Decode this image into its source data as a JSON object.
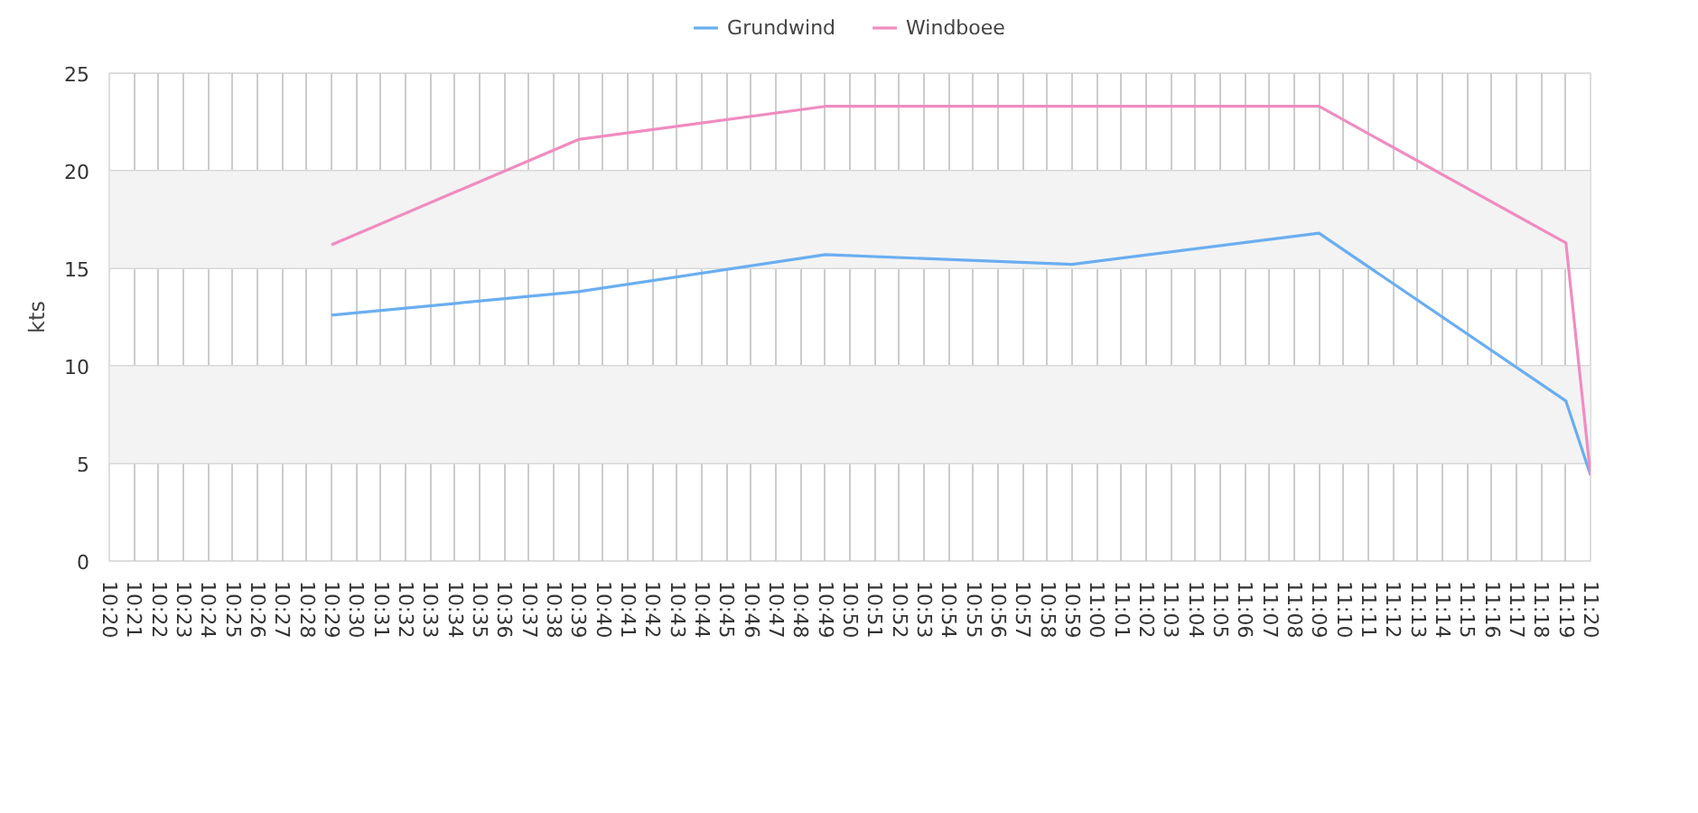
{
  "chart_data": {
    "type": "line",
    "ylabel": "kts",
    "x": [
      10.4833,
      10.65,
      10.8167,
      10.9833,
      11.15,
      11.3167,
      11.3333
    ],
    "series": [
      {
        "name": "Grundwind",
        "color": "#6aaef0",
        "values": [
          12.6,
          13.8,
          15.7,
          15.2,
          16.8,
          8.2,
          4.4
        ]
      },
      {
        "name": "Windboee",
        "color": "#f08cc0",
        "values": [
          16.2,
          21.6,
          23.3,
          23.3,
          23.3,
          16.3,
          4.4
        ]
      }
    ],
    "xlim": [
      10.3333,
      11.3333
    ],
    "ylim": [
      0,
      25
    ],
    "yticks": [
      0,
      5,
      10,
      15,
      20,
      25
    ],
    "xticks": [
      {
        "value": 10.3333,
        "label": "10:20"
      },
      {
        "value": 10.35,
        "label": "10:21"
      },
      {
        "value": 10.3667,
        "label": "10:22"
      },
      {
        "value": 10.3833,
        "label": "10:23"
      },
      {
        "value": 10.4,
        "label": "10:24"
      },
      {
        "value": 10.4167,
        "label": "10:25"
      },
      {
        "value": 10.4333,
        "label": "10:26"
      },
      {
        "value": 10.45,
        "label": "10:27"
      },
      {
        "value": 10.4667,
        "label": "10:28"
      },
      {
        "value": 10.4833,
        "label": "10:29"
      },
      {
        "value": 10.5,
        "label": "10:30"
      },
      {
        "value": 10.5167,
        "label": "10:31"
      },
      {
        "value": 10.5333,
        "label": "10:32"
      },
      {
        "value": 10.55,
        "label": "10:33"
      },
      {
        "value": 10.5667,
        "label": "10:34"
      },
      {
        "value": 10.5833,
        "label": "10:35"
      },
      {
        "value": 10.6,
        "label": "10:36"
      },
      {
        "value": 10.6167,
        "label": "10:37"
      },
      {
        "value": 10.6333,
        "label": "10:38"
      },
      {
        "value": 10.65,
        "label": "10:39"
      },
      {
        "value": 10.6667,
        "label": "10:40"
      },
      {
        "value": 10.6833,
        "label": "10:41"
      },
      {
        "value": 10.7,
        "label": "10:42"
      },
      {
        "value": 10.7167,
        "label": "10:43"
      },
      {
        "value": 10.7333,
        "label": "10:44"
      },
      {
        "value": 10.75,
        "label": "10:45"
      },
      {
        "value": 10.7667,
        "label": "10:46"
      },
      {
        "value": 10.7833,
        "label": "10:47"
      },
      {
        "value": 10.8,
        "label": "10:48"
      },
      {
        "value": 10.8167,
        "label": "10:49"
      },
      {
        "value": 10.8333,
        "label": "10:50"
      },
      {
        "value": 10.85,
        "label": "10:51"
      },
      {
        "value": 10.8667,
        "label": "10:52"
      },
      {
        "value": 10.8833,
        "label": "10:53"
      },
      {
        "value": 10.9,
        "label": "10:54"
      },
      {
        "value": 10.9167,
        "label": "10:55"
      },
      {
        "value": 10.9333,
        "label": "10:56"
      },
      {
        "value": 10.95,
        "label": "10:57"
      },
      {
        "value": 10.9667,
        "label": "10:58"
      },
      {
        "value": 10.9833,
        "label": "10:59"
      },
      {
        "value": 11,
        "label": "11:00"
      },
      {
        "value": 11.0167,
        "label": "11:01"
      },
      {
        "value": 11.0333,
        "label": "11:02"
      },
      {
        "value": 11.05,
        "label": "11:03"
      },
      {
        "value": 11.0667,
        "label": "11:04"
      },
      {
        "value": 11.0833,
        "label": "11:05"
      },
      {
        "value": 11.1,
        "label": "11:06"
      },
      {
        "value": 11.1167,
        "label": "11:07"
      },
      {
        "value": 11.1333,
        "label": "11:08"
      },
      {
        "value": 11.15,
        "label": "11:09"
      },
      {
        "value": 11.1667,
        "label": "11:10"
      },
      {
        "value": 11.1833,
        "label": "11:11"
      },
      {
        "value": 11.2,
        "label": "11:12"
      },
      {
        "value": 11.2167,
        "label": "11:13"
      },
      {
        "value": 11.2333,
        "label": "11:14"
      },
      {
        "value": 11.25,
        "label": "11:15"
      },
      {
        "value": 11.2667,
        "label": "11:16"
      },
      {
        "value": 11.2833,
        "label": "11:17"
      },
      {
        "value": 11.3,
        "label": "11:18"
      },
      {
        "value": 11.3167,
        "label": "11:19"
      },
      {
        "value": 11.3333,
        "label": "11:20"
      }
    ],
    "bands": [
      {
        "axis": "y",
        "from": 5,
        "to": 10,
        "color": "#f3f3f3"
      },
      {
        "axis": "y",
        "from": 15,
        "to": 20,
        "color": "#f3f3f3"
      }
    ],
    "grid": true,
    "legend": "top",
    "marker": "none",
    "line_style": "solid"
  }
}
